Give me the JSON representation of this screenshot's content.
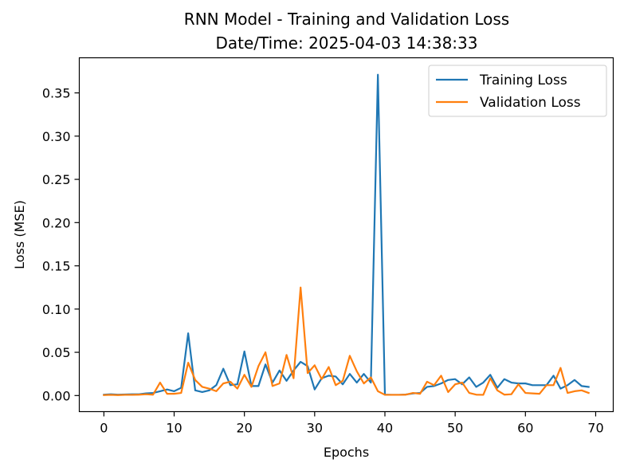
{
  "chart_data": {
    "type": "line",
    "title": "RNN Model - Training and Validation Loss",
    "subtitle": "Date/Time: 2025-04-03 14:38:33",
    "xlabel": "Epochs",
    "ylabel": "Loss (MSE)",
    "xlim": [
      -3.5,
      72.5
    ],
    "ylim": [
      -0.0186,
      0.3906
    ],
    "xticks": [
      0,
      10,
      20,
      30,
      40,
      50,
      60,
      70
    ],
    "yticks": [
      0.0,
      0.05,
      0.1,
      0.15,
      0.2,
      0.25,
      0.3,
      0.35
    ],
    "ytick_labels": [
      "0.00",
      "0.05",
      "0.10",
      "0.15",
      "0.20",
      "0.25",
      "0.30",
      "0.35"
    ],
    "grid": false,
    "legend_position": "top-right",
    "x": [
      0,
      1,
      2,
      3,
      4,
      5,
      6,
      7,
      8,
      9,
      10,
      11,
      12,
      13,
      14,
      15,
      16,
      17,
      18,
      19,
      20,
      21,
      22,
      23,
      24,
      25,
      26,
      27,
      28,
      29,
      30,
      31,
      32,
      33,
      34,
      35,
      36,
      37,
      38,
      39,
      40,
      41,
      42,
      43,
      44,
      45,
      46,
      47,
      48,
      49,
      50,
      51,
      52,
      53,
      54,
      55,
      56,
      57,
      58,
      59,
      60,
      61,
      62,
      63,
      64,
      65,
      66,
      67,
      68,
      69
    ],
    "series": [
      {
        "name": "Training Loss",
        "color": "#1f77b4",
        "values": [
          0.001,
          0.0015,
          0.001,
          0.0012,
          0.0015,
          0.0015,
          0.0025,
          0.003,
          0.005,
          0.007,
          0.005,
          0.009,
          0.072,
          0.006,
          0.004,
          0.006,
          0.012,
          0.031,
          0.012,
          0.013,
          0.051,
          0.011,
          0.011,
          0.036,
          0.015,
          0.029,
          0.017,
          0.029,
          0.039,
          0.034,
          0.007,
          0.02,
          0.023,
          0.022,
          0.013,
          0.025,
          0.015,
          0.025,
          0.015,
          0.371,
          0.001,
          0.0008,
          0.0008,
          0.0012,
          0.0025,
          0.003,
          0.01,
          0.011,
          0.014,
          0.018,
          0.019,
          0.013,
          0.021,
          0.01,
          0.015,
          0.024,
          0.009,
          0.019,
          0.015,
          0.014,
          0.014,
          0.012,
          0.012,
          0.012,
          0.023,
          0.008,
          0.012,
          0.018,
          0.011,
          0.01
        ]
      },
      {
        "name": "Validation Loss",
        "color": "#ff7f0e",
        "values": [
          0.0005,
          0.0008,
          0.0005,
          0.0008,
          0.0008,
          0.001,
          0.0015,
          0.001,
          0.015,
          0.002,
          0.002,
          0.003,
          0.038,
          0.018,
          0.01,
          0.008,
          0.005,
          0.014,
          0.016,
          0.008,
          0.024,
          0.01,
          0.034,
          0.05,
          0.011,
          0.014,
          0.047,
          0.02,
          0.125,
          0.026,
          0.035,
          0.019,
          0.033,
          0.012,
          0.017,
          0.046,
          0.028,
          0.014,
          0.021,
          0.005,
          0.0008,
          0.0008,
          0.0008,
          0.001,
          0.003,
          0.002,
          0.016,
          0.012,
          0.023,
          0.004,
          0.013,
          0.015,
          0.003,
          0.001,
          0.0008,
          0.02,
          0.006,
          0.001,
          0.0015,
          0.013,
          0.003,
          0.0025,
          0.002,
          0.012,
          0.012,
          0.032,
          0.003,
          0.005,
          0.006,
          0.003
        ]
      }
    ]
  }
}
